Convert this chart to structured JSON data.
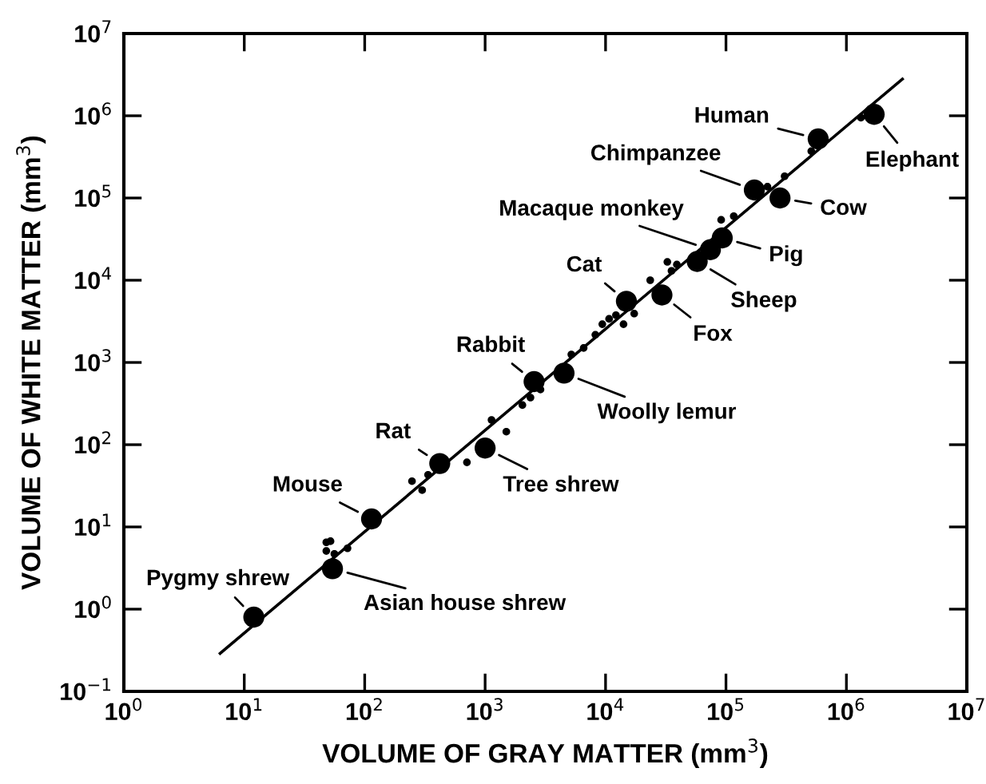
{
  "chart_data": {
    "type": "scatter",
    "xlabel": "VOLUME OF GRAY MATTER (mm$^{3}$)",
    "ylabel": "VOLUME OF WHITE MATTER (mm$^{3}$)",
    "log": "xy",
    "xlim": [
      1,
      10000000
    ],
    "ylim": [
      0.1,
      10000000
    ],
    "xticks": [
      {
        "value": 1,
        "label": "10$^{0}$"
      },
      {
        "value": 10,
        "label": "10$^{1}$"
      },
      {
        "value": 100,
        "label": "10$^{2}$"
      },
      {
        "value": 1000,
        "label": "10$^{3}$"
      },
      {
        "value": 10000,
        "label": "10$^{4}$"
      },
      {
        "value": 100000,
        "label": "10$^{5}$"
      },
      {
        "value": 1000000,
        "label": "10$^{6}$"
      },
      {
        "value": 10000000,
        "label": "10$^{7}$"
      }
    ],
    "yticks": [
      {
        "value": 0.1,
        "label": "10$^{−1}$"
      },
      {
        "value": 1,
        "label": "10$^{0}$"
      },
      {
        "value": 10,
        "label": "10$^{1}$"
      },
      {
        "value": 100,
        "label": "10$^{2}$"
      },
      {
        "value": 1000,
        "label": "10$^{3}$"
      },
      {
        "value": 10000,
        "label": "10$^{4}$"
      },
      {
        "value": 100000,
        "label": "10$^{5}$"
      },
      {
        "value": 1000000,
        "label": "10$^{6}$"
      },
      {
        "value": 10000000,
        "label": "10$^{7}$"
      }
    ],
    "grid": false,
    "legend": false,
    "marker": "circle",
    "series": [
      {
        "type": "line",
        "marker": "none",
        "color": "#000000",
        "x": [
          6.3,
          2920000
        ],
        "values": [
          0.29,
          2800000
        ]
      },
      {
        "color": "#000000",
        "x": [
          48,
          52,
          48,
          56,
          72,
          247,
          300,
          336,
          706,
          1130,
          1500,
          2040,
          2380,
          2880,
          5200,
          6580,
          8230,
          9400,
          10700,
          12200,
          14100,
          17300,
          23500,
          32600,
          35300,
          39100,
          91200,
          116000,
          221000,
          307000,
          511000,
          1320000
        ],
        "values": [
          6.5,
          6.7,
          5.1,
          4.7,
          5.5,
          36,
          28,
          43,
          61,
          200,
          144,
          303,
          374,
          468,
          1250,
          1500,
          2170,
          2920,
          3390,
          3760,
          2920,
          3930,
          10000,
          16700,
          13000,
          15500,
          54200,
          60100,
          137000,
          184000,
          371000,
          948000
        ]
      },
      {
        "color": "#000000",
        "x": [
          12,
          54,
          114,
          420,
          1000,
          2550,
          4520,
          14900,
          29400,
          57700,
          74300,
          93100,
          172000,
          281000,
          583000,
          1700000
        ],
        "values": [
          0.8,
          3.1,
          12.5,
          59,
          91,
          585,
          741,
          5550,
          6620,
          16900,
          23500,
          32700,
          125000,
          100000,
          523000,
          1040000
        ]
      }
    ],
    "annotations": [
      {
        "text": "Pygmy shrew",
        "x": 12,
        "y": 0.8
      },
      {
        "text": "Asian house shrew",
        "x": 54,
        "y": 3.1
      },
      {
        "text": "Mouse",
        "x": 114,
        "y": 12.5
      },
      {
        "text": "Rat",
        "x": 420,
        "y": 59
      },
      {
        "text": "Tree shrew",
        "x": 1000,
        "y": 91
      },
      {
        "text": "Rabbit",
        "x": 2550,
        "y": 585
      },
      {
        "text": "Woolly lemur",
        "x": 4520,
        "y": 741
      },
      {
        "text": "Cat",
        "x": 14900,
        "y": 5550
      },
      {
        "text": "Fox",
        "x": 29400,
        "y": 6620
      },
      {
        "text": "Sheep",
        "x": 57700,
        "y": 16900
      },
      {
        "text": "Macaque monkey",
        "x": 74300,
        "y": 23500
      },
      {
        "text": "Pig",
        "x": 93100,
        "y": 32700
      },
      {
        "text": "Chimpanzee",
        "x": 172000,
        "y": 125000
      },
      {
        "text": "Cow",
        "x": 281000,
        "y": 100000
      },
      {
        "text": "Human",
        "x": 583000,
        "y": 523000
      },
      {
        "text": "Elephant",
        "x": 1700000,
        "y": 1040000
      }
    ]
  }
}
